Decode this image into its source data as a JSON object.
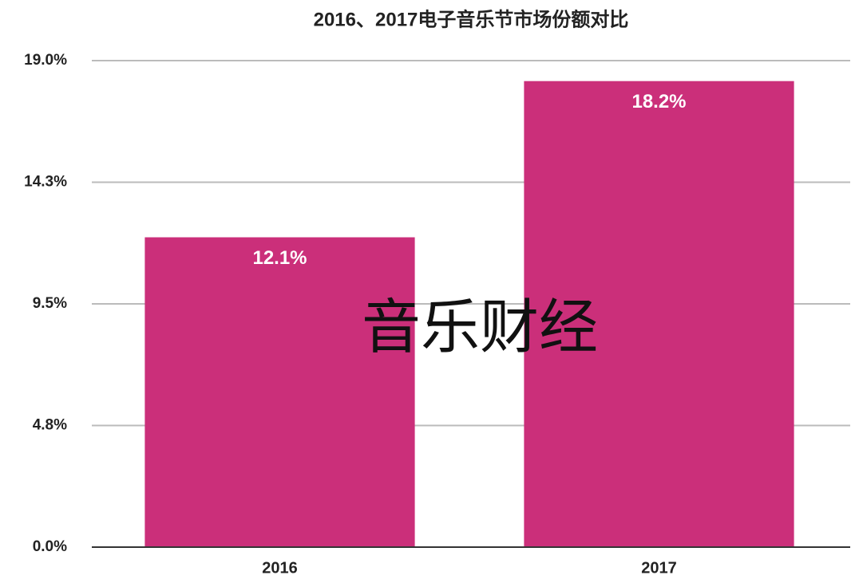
{
  "chart_data": {
    "type": "bar",
    "title": "2016、2017电子音乐节市场份额对比",
    "categories": [
      "2016",
      "2017"
    ],
    "values": [
      12.1,
      18.2
    ],
    "value_labels": [
      "12.1%",
      "18.2%"
    ],
    "color": "#cb2f7a",
    "ylim": [
      0,
      19
    ],
    "yticks": [
      {
        "value": 0,
        "label": "0.0%"
      },
      {
        "value": 4.75,
        "label": "4.8%"
      },
      {
        "value": 9.5,
        "label": "9.5%"
      },
      {
        "value": 14.25,
        "label": "14.3%"
      },
      {
        "value": 19,
        "label": "19.0%"
      }
    ],
    "grid": true,
    "watermark": "音乐财经"
  }
}
